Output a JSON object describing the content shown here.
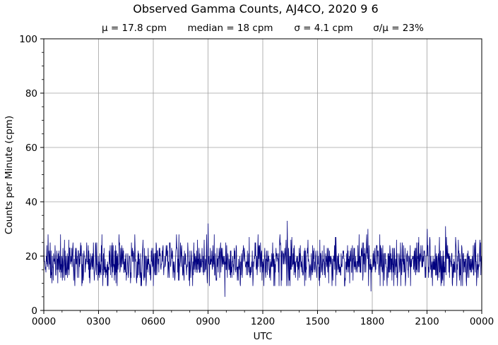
{
  "chart_data": {
    "type": "line",
    "title": "Observed Gamma Counts, AJ4CO, 2020 9 6",
    "stats": {
      "mean": "μ = 17.8 cpm",
      "median": "median = 18 cpm",
      "sigma": "σ = 4.1 cpm",
      "ratio": "σ/μ = 23%"
    },
    "xlabel": "UTC",
    "ylabel": "Counts per Minute (cpm)",
    "x_tick_labels": [
      "0000",
      "0300",
      "0600",
      "0900",
      "1200",
      "1500",
      "1800",
      "2100",
      "0000"
    ],
    "y_tick_labels": [
      "0",
      "20",
      "40",
      "60",
      "80",
      "100"
    ],
    "xlim_hours": [
      0,
      24
    ],
    "ylim": [
      0,
      100
    ],
    "y_ticks": [
      0,
      20,
      40,
      60,
      80,
      100
    ],
    "grid": true,
    "line_color": "#00007f",
    "grid_color": "#a0a0a0",
    "series": [
      {
        "sampling": "1 per minute",
        "mean": 17.8,
        "median": 18,
        "sd": 4.1,
        "notable_points": [
          {
            "utc": "0000",
            "cpm": 29
          },
          {
            "utc": "0900",
            "cpm": 32
          },
          {
            "utc": "0955",
            "cpm": 5
          },
          {
            "utc": "1320",
            "cpm": 33
          },
          {
            "utc": "1755",
            "cpm": 7
          },
          {
            "utc": "1745",
            "cpm": 30
          },
          {
            "utc": "2100",
            "cpm": 30
          },
          {
            "utc": "2200",
            "cpm": 31
          }
        ]
      }
    ]
  }
}
